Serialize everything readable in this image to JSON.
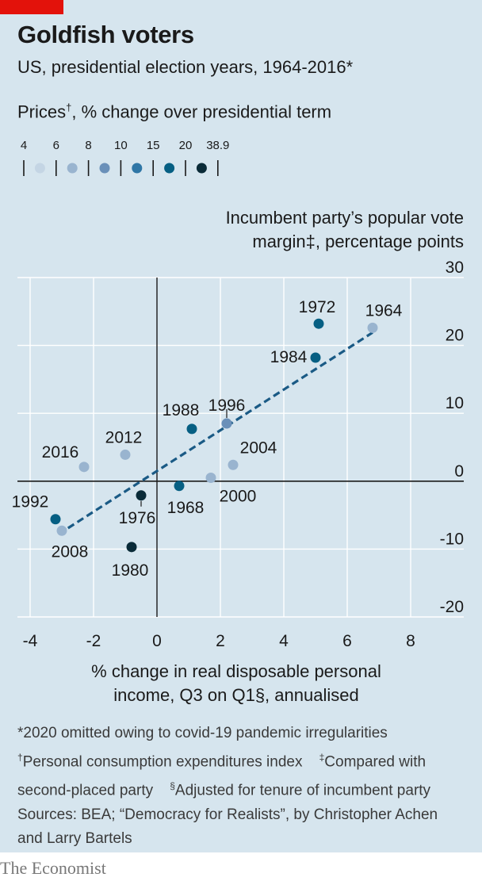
{
  "header": {
    "title": "Goldfish voters",
    "subtitle": "US, presidential election years, 1964-2016*"
  },
  "legend": {
    "title": "Prices",
    "title_mark": "†",
    "title_rest": ", % change over presidential term",
    "breaks": [
      "4",
      "6",
      "8",
      "10",
      "15",
      "20",
      "38.9"
    ],
    "colors": [
      "#c4d5e4",
      "#99b4cf",
      "#6a90b9",
      "#2f76a6",
      "#065f83",
      "#0a2b38"
    ]
  },
  "footnotes": {
    "line1": "*2020 omitted owing to covid-19 pandemic irregularities",
    "line2a_mark": "†",
    "line2a": "Personal consumption expenditures index",
    "line2b_mark": "‡",
    "line2b": "Compared with",
    "line3a": "second-placed party",
    "line3b_mark": "§",
    "line3b": "Adjusted for tenure of incumbent party",
    "line4": "Sources: BEA; “Democracy for Realists”, by Christopher Achen",
    "line5": "and Larry Bartels"
  },
  "brand": "The Economist",
  "chart_data": {
    "type": "scatter",
    "ylabel_line1": "Incumbent party’s popular vote",
    "ylabel_line2": "margin‡, percentage points",
    "xlabel_line1": "% change in real disposable personal",
    "xlabel_line2": "income, Q3 on Q1§, annualised",
    "xlim": [
      -4,
      8
    ],
    "ylim": [
      -20,
      30
    ],
    "xticks": [
      -4,
      -2,
      0,
      2,
      4,
      6,
      8
    ],
    "yticks": [
      30,
      20,
      10,
      0,
      -10,
      -20
    ],
    "grid": true,
    "points": [
      {
        "year": "1964",
        "x": 6.8,
        "y": 22.6,
        "color_class": 1
      },
      {
        "year": "1968",
        "x": 0.7,
        "y": -0.7,
        "color_class": 4
      },
      {
        "year": "1972",
        "x": 5.1,
        "y": 23.2,
        "color_class": 4
      },
      {
        "year": "1976",
        "x": -0.5,
        "y": -2.1,
        "color_class": 5
      },
      {
        "year": "1980",
        "x": -0.8,
        "y": -9.7,
        "color_class": 5
      },
      {
        "year": "1984",
        "x": 5.0,
        "y": 18.2,
        "color_class": 4
      },
      {
        "year": "1988",
        "x": 1.1,
        "y": 7.7,
        "color_class": 4
      },
      {
        "year": "1992",
        "x": -3.2,
        "y": -5.6,
        "color_class": 4
      },
      {
        "year": "1996",
        "x": 2.2,
        "y": 8.5,
        "color_class": 2
      },
      {
        "year": "2000",
        "x": 1.7,
        "y": 0.5,
        "color_class": 1
      },
      {
        "year": "2004",
        "x": 2.4,
        "y": 2.4,
        "color_class": 1
      },
      {
        "year": "2008",
        "x": -3.0,
        "y": -7.3,
        "color_class": 1
      },
      {
        "year": "2012",
        "x": -1.0,
        "y": 3.9,
        "color_class": 1
      },
      {
        "year": "2016",
        "x": -2.3,
        "y": 2.1,
        "color_class": 1
      }
    ],
    "trendline": {
      "x": [
        -3.1,
        6.8
      ],
      "y": [
        -7.8,
        21.9
      ],
      "color": "#1a5a85"
    }
  }
}
